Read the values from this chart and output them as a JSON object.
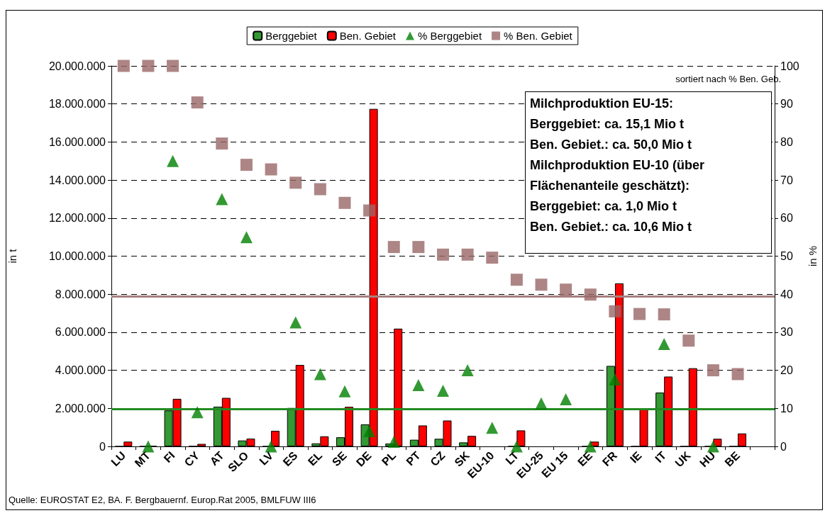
{
  "chart_data": {
    "type": "bar",
    "categories": [
      "LU",
      "MT",
      "FI",
      "CY",
      "AT",
      "SLO",
      "LV",
      "ES",
      "EL",
      "SE",
      "DE",
      "PL",
      "PT",
      "CZ",
      "SK",
      "EU-10",
      "LT",
      "EU-25",
      "EU 15",
      "EE",
      "FR",
      "IE",
      "IT",
      "UK",
      "HU",
      "BE",
      null
    ],
    "series": [
      {
        "name": "Berggebiet",
        "color": "#339933",
        "values": [
          0,
          0,
          1890000,
          10000,
          2090000,
          310000,
          0,
          2020000,
          160000,
          480000,
          1160000,
          150000,
          350000,
          400000,
          210000,
          null,
          0,
          null,
          null,
          0,
          4230000,
          0,
          2830000,
          0,
          0,
          0,
          null
        ]
      },
      {
        "name": "Ben. Gebiet",
        "color": "#ff0000",
        "values": [
          250000,
          20000,
          2500000,
          130000,
          2550000,
          410000,
          820000,
          4280000,
          530000,
          2080000,
          17740000,
          6190000,
          1100000,
          1360000,
          550000,
          null,
          840000,
          null,
          null,
          250000,
          8570000,
          2000000,
          3670000,
          4110000,
          400000,
          680000,
          null
        ]
      },
      {
        "name": "% Berggebiet",
        "type": "scatter",
        "marker": "triangle",
        "axis": "y2",
        "color": "#008000",
        "values": [
          null,
          0,
          75,
          9,
          65,
          55,
          0,
          32.6,
          19,
          14.5,
          4,
          1.2,
          16.1,
          14.6,
          20,
          4.9,
          0,
          11.3,
          12.4,
          0,
          17.6,
          null,
          26.9,
          null,
          0,
          null,
          null
        ]
      },
      {
        "name": "% Ben. Gebiet",
        "type": "scatter",
        "marker": "square",
        "axis": "y2",
        "color": "#996666",
        "values": [
          100,
          100,
          100,
          90.4,
          79.6,
          74,
          72.8,
          69.3,
          67.6,
          64,
          62,
          52.4,
          52.4,
          50.4,
          50.4,
          49.6,
          43.8,
          42.5,
          41.2,
          39.9,
          35.5,
          34.8,
          34.7,
          27.8,
          20,
          19,
          null
        ]
      }
    ],
    "ylabel": "in t",
    "y2label": "in %",
    "ylim": [
      0,
      20000000
    ],
    "yticks": [
      0,
      {
        "value": 2000000,
        "label": "2.000.000"
      },
      {
        "value": 4000000,
        "label": "4.000.000"
      },
      {
        "value": 6000000,
        "label": "6.000.000"
      },
      {
        "value": 8000000,
        "label": "8.000.000"
      },
      {
        "value": 10000000,
        "label": "10.000.000"
      },
      {
        "value": 12000000,
        "label": "12.000.000"
      },
      {
        "value": 14000000,
        "label": "14.000.000"
      },
      {
        "value": 16000000,
        "label": "16.000.000"
      },
      {
        "value": 18000000,
        "label": "18.000.000"
      },
      {
        "value": 20000000,
        "label": "20.000.000"
      }
    ],
    "y2lim": [
      0,
      100
    ],
    "y2ticks": [
      0,
      10,
      20,
      30,
      40,
      50,
      60,
      70,
      80,
      90,
      100
    ],
    "ref_lines": [
      {
        "axis": "y2",
        "value": 39.4,
        "color": "#a88080"
      },
      {
        "axis": "y2",
        "value": 9.8,
        "color": "#228b22"
      }
    ],
    "grid": "y",
    "legend": "top",
    "annotations": [
      "sortiert nach % Ben. Geb.",
      "Milchproduktion EU-15:",
      "Berggebiet: ca. 15,1 Mio t",
      "Ben. Gebiet.: ca. 50,0 Mio t",
      "Milchproduktion EU-10 (über Flächenanteile geschätzt):",
      "Berggebiet: ca. 1,0 Mio t",
      "Ben. Gebiet.: ca. 10,6 Mio t",
      "Quelle: EUROSTAT E2, BA. F. Bergbauernf. Europ.Rat 2005,  BMLFUW III6"
    ]
  }
}
